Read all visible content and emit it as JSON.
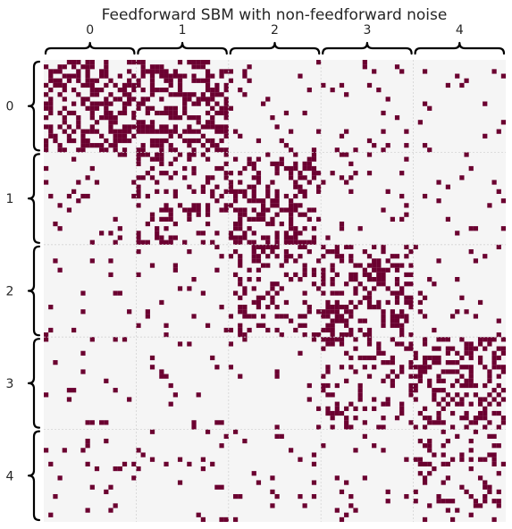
{
  "chart_data": {
    "type": "heatmap",
    "title": "Feedforward SBM with non-feedforward noise",
    "xlabel": "",
    "ylabel": "",
    "block_labels": [
      "0",
      "1",
      "2",
      "3",
      "4"
    ],
    "nodes_per_block": 20,
    "n_nodes": 100,
    "grid": true,
    "cell_colors": {
      "edge": "#6b0030",
      "no_edge": "#f5f5f5",
      "grid_line": "#d4d4d4"
    },
    "edge_probability_blocks": [
      [
        0.45,
        0.5,
        0.06,
        0.05,
        0.04
      ],
      [
        0.06,
        0.25,
        0.4,
        0.05,
        0.04
      ],
      [
        0.05,
        0.05,
        0.28,
        0.4,
        0.06
      ],
      [
        0.05,
        0.05,
        0.05,
        0.25,
        0.4
      ],
      [
        0.05,
        0.05,
        0.05,
        0.05,
        0.22
      ]
    ]
  }
}
